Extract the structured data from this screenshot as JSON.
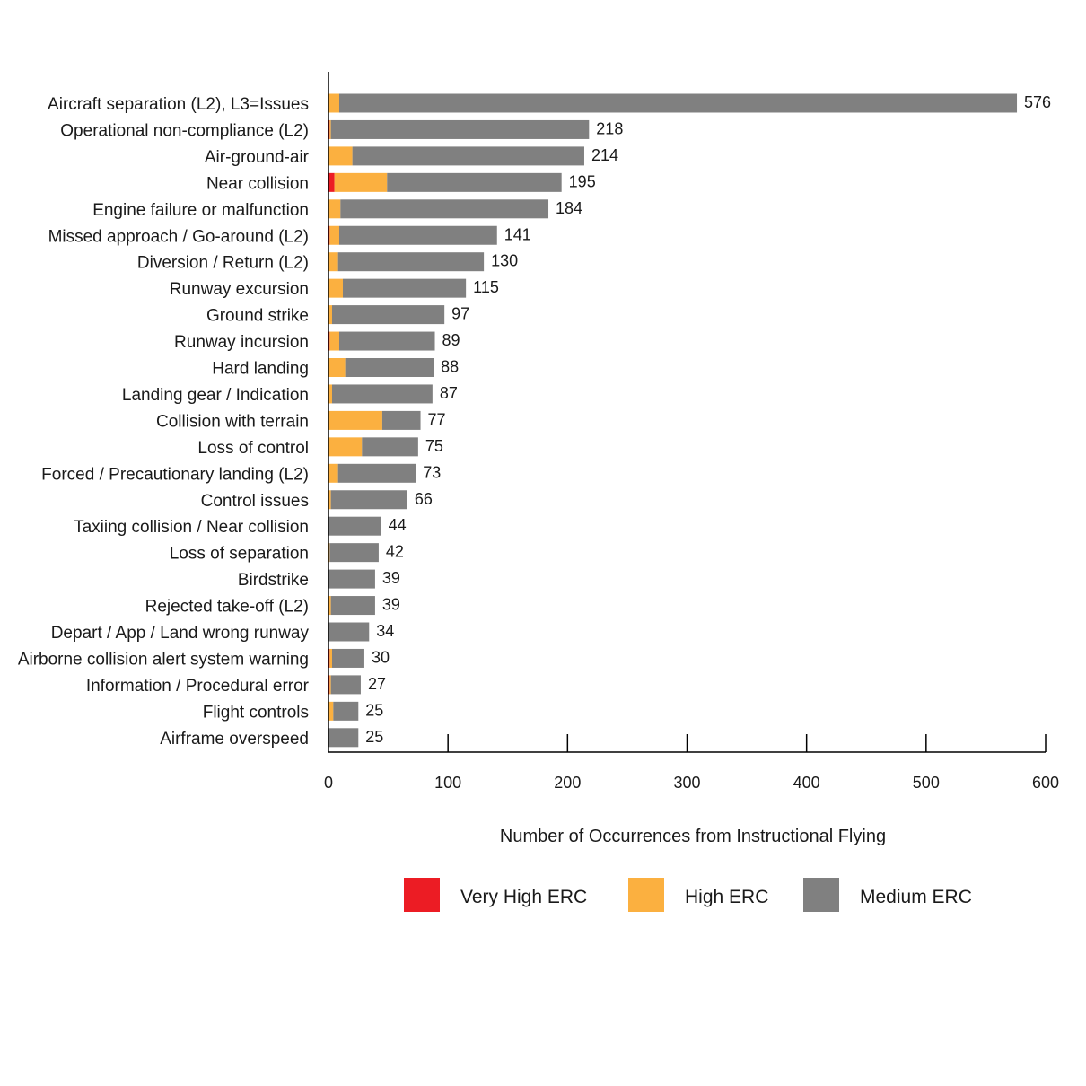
{
  "chart_data": {
    "type": "bar",
    "orientation": "horizontal",
    "stacked": true,
    "xlabel": "Number of Occurrences from Instructional Flying",
    "xlim": [
      0,
      600
    ],
    "xticks": [
      0,
      100,
      200,
      300,
      400,
      500,
      600
    ],
    "xtick_labels": [
      "0",
      "100",
      "200",
      "300",
      "400",
      "500",
      "600"
    ],
    "grid": false,
    "legend_position": "bottom",
    "categories": [
      "Aircraft separation (L2), L3=Issues",
      "Operational non-compliance (L2)",
      "Air-ground-air",
      "Near collision",
      "Engine failure or malfunction",
      "Missed approach / Go-around (L2)",
      "Diversion / Return (L2)",
      "Runway excursion",
      "Ground strike",
      "Runway incursion",
      "Hard landing",
      "Landing gear / Indication",
      "Collision with terrain",
      "Loss of control",
      "Forced / Precautionary landing (L2)",
      "Control issues",
      "Taxiing collision / Near collision",
      "Loss of separation",
      "Birdstrike",
      "Rejected take-off (L2)",
      "Depart / App / Land wrong runway",
      "Airborne collision alert system warning",
      "Information / Procedural error",
      "Flight controls",
      "Airframe overspeed"
    ],
    "totals": [
      576,
      218,
      214,
      195,
      184,
      141,
      130,
      115,
      97,
      89,
      88,
      87,
      77,
      75,
      73,
      66,
      44,
      42,
      39,
      39,
      34,
      30,
      27,
      25,
      25
    ],
    "total_labels": [
      "576",
      "218",
      "214",
      "195",
      "184",
      "141",
      "130",
      "115",
      "97",
      "89",
      "88",
      "87",
      "77",
      "75",
      "73",
      "66",
      "44",
      "42",
      "39",
      "39",
      "34",
      "30",
      "27",
      "25",
      "25"
    ],
    "series": [
      {
        "name": "Very High ERC",
        "color": "#ec1c24",
        "values": [
          0,
          1,
          0,
          5,
          0,
          1,
          0,
          0,
          0,
          1,
          0,
          0,
          0,
          0,
          0,
          0,
          0,
          0,
          0,
          0,
          0,
          1,
          1,
          0,
          0
        ]
      },
      {
        "name": "High ERC",
        "color": "#fbb040",
        "values": [
          9,
          1,
          20,
          44,
          10,
          8,
          8,
          12,
          3,
          8,
          14,
          3,
          45,
          28,
          8,
          2,
          0,
          1,
          0,
          2,
          0,
          2,
          1,
          4,
          0
        ]
      },
      {
        "name": "Medium ERC",
        "color": "#808080",
        "values": [
          567,
          216,
          194,
          146,
          174,
          132,
          122,
          103,
          94,
          80,
          74,
          84,
          32,
          47,
          65,
          64,
          44,
          41,
          39,
          37,
          34,
          27,
          25,
          21,
          25
        ]
      }
    ]
  }
}
